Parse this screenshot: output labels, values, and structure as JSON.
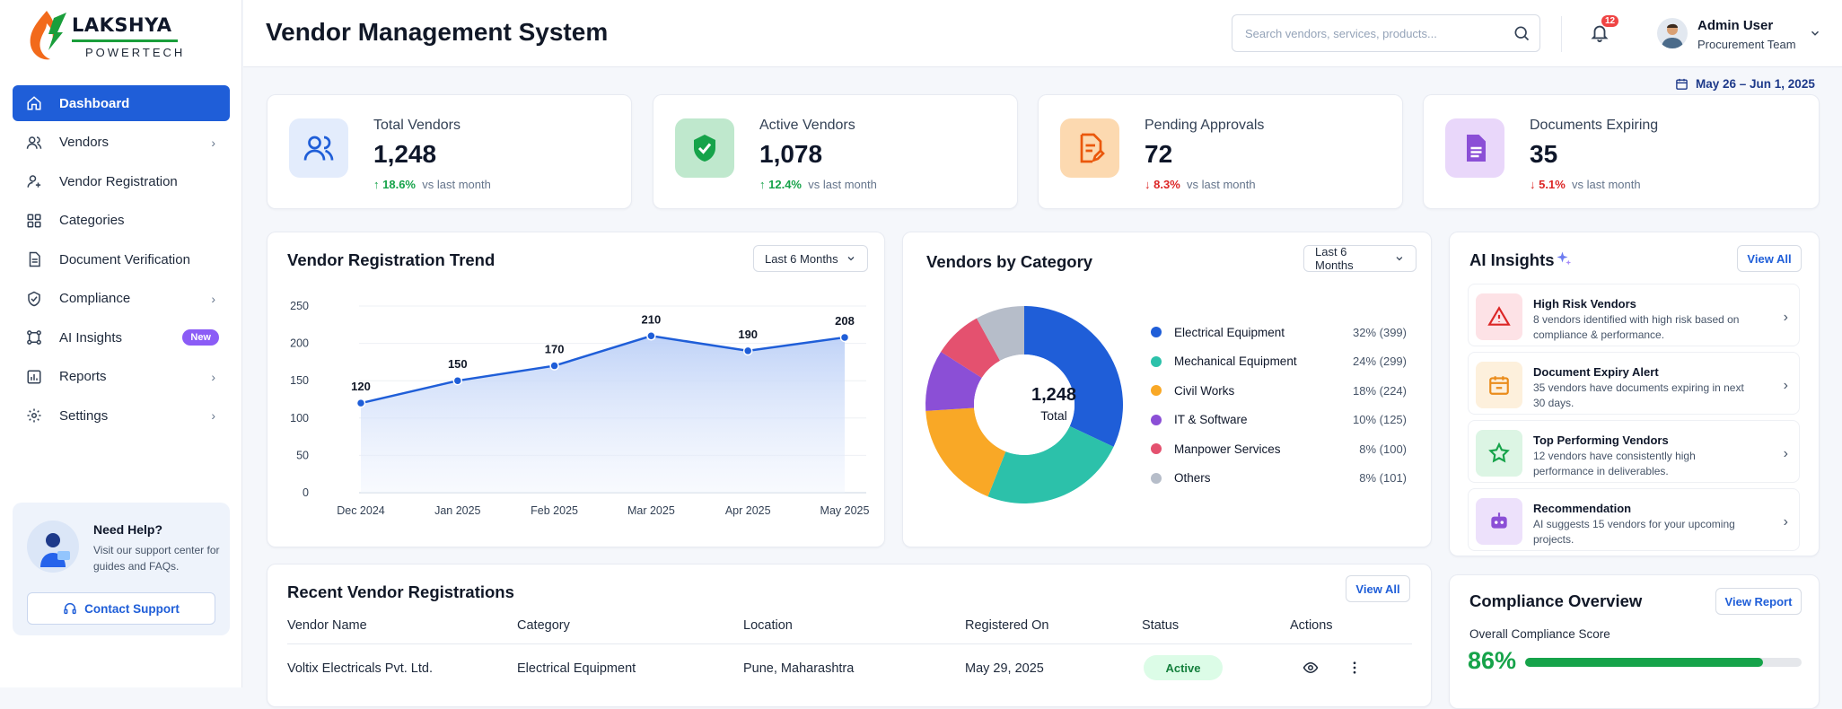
{
  "brand": {
    "name": "LAKSHYA",
    "sub": "POWERTECH"
  },
  "sidebar": {
    "items": [
      {
        "label": "Dashboard",
        "icon": "home-icon"
      },
      {
        "label": "Vendors",
        "icon": "users-icon"
      },
      {
        "label": "Vendor Registration",
        "icon": "user-add-icon"
      },
      {
        "label": "Categories",
        "icon": "grid-icon"
      },
      {
        "label": "Document Verification",
        "icon": "document-icon"
      },
      {
        "label": "Compliance",
        "icon": "shield-icon"
      },
      {
        "label": "AI Insights",
        "icon": "network-icon",
        "badge": "New"
      },
      {
        "label": "Reports",
        "icon": "reports-icon"
      },
      {
        "label": "Settings",
        "icon": "gear-icon"
      }
    ],
    "help": {
      "title": "Need Help?",
      "text": "Visit our support center for guides and FAQs.",
      "button": "Contact Support"
    }
  },
  "header": {
    "title": "Vendor Management System",
    "search_placeholder": "Search vendors, services, products...",
    "notifications": "12",
    "user_name": "Admin User",
    "user_role": "Procurement Team",
    "date_range": "May 26 – Jun 1, 2025"
  },
  "stats": [
    {
      "label": "Total Vendors",
      "value": "1,248",
      "delta": "18.6%",
      "dir": "up",
      "note": "vs last month"
    },
    {
      "label": "Active Vendors",
      "value": "1,078",
      "delta": "12.4%",
      "dir": "up",
      "note": "vs last month"
    },
    {
      "label": "Pending Approvals",
      "value": "72",
      "delta": "8.3%",
      "dir": "down",
      "note": "vs last month"
    },
    {
      "label": "Documents Expiring",
      "value": "35",
      "delta": "5.1%",
      "dir": "down",
      "note": "vs last month"
    }
  ],
  "trend": {
    "title": "Vendor Registration Trend",
    "range": "Last 6 Months"
  },
  "category": {
    "title": "Vendors by Category",
    "range": "Last 6 Months",
    "total": "1,248",
    "total_label": "Total"
  },
  "insights": {
    "title": "AI Insights",
    "view_all": "View All",
    "items": [
      {
        "title": "High Risk Vendors",
        "text": "8 vendors identified with high risk based on compliance & performance."
      },
      {
        "title": "Document Expiry Alert",
        "text": "35 vendors have documents expiring in next 30 days."
      },
      {
        "title": "Top Performing Vendors",
        "text": "12 vendors have consistently high performance in deliverables."
      },
      {
        "title": "Recommendation",
        "text": "AI suggests 15 vendors for your upcoming projects."
      }
    ]
  },
  "recent": {
    "title": "Recent Vendor Registrations",
    "view_all": "View All",
    "columns": [
      "Vendor Name",
      "Category",
      "Location",
      "Registered On",
      "Status",
      "Actions"
    ],
    "rows": [
      {
        "name": "Voltix Electricals Pvt. Ltd.",
        "category": "Electrical Equipment",
        "location": "Pune, Maharashtra",
        "date": "May 29, 2025",
        "status": "Active"
      }
    ]
  },
  "compliance": {
    "title": "Compliance Overview",
    "button": "View Report",
    "label": "Overall Compliance Score",
    "score": "86%",
    "fraction": 0.86
  },
  "chart_data": [
    {
      "type": "area",
      "categories": [
        "Dec 2024",
        "Jan 2025",
        "Feb 2025",
        "Mar 2025",
        "Apr 2025",
        "May 2025"
      ],
      "values": [
        120,
        150,
        170,
        210,
        190,
        208
      ],
      "yticks": [
        0,
        50,
        100,
        150,
        200,
        250
      ],
      "ylim": [
        0,
        250
      ],
      "grid": true
    },
    {
      "type": "pie",
      "labels": [
        "Electrical Equipment",
        "Mechanical Equipment",
        "Civil Works",
        "IT & Software",
        "Manpower Services",
        "Others"
      ],
      "percent": [
        32,
        24,
        18,
        10,
        8,
        8
      ],
      "counts": [
        399,
        299,
        224,
        125,
        100,
        101
      ],
      "value_labels": [
        "32% (399)",
        "24% (299)",
        "18% (224)",
        "10% (125)",
        "8% (100)",
        "8% (101)"
      ],
      "colors": [
        "#1f5ed8",
        "#2cc1aa",
        "#f9a826",
        "#8b4fd6",
        "#e4516f",
        "#b6bdc9"
      ],
      "legend": "right"
    }
  ]
}
